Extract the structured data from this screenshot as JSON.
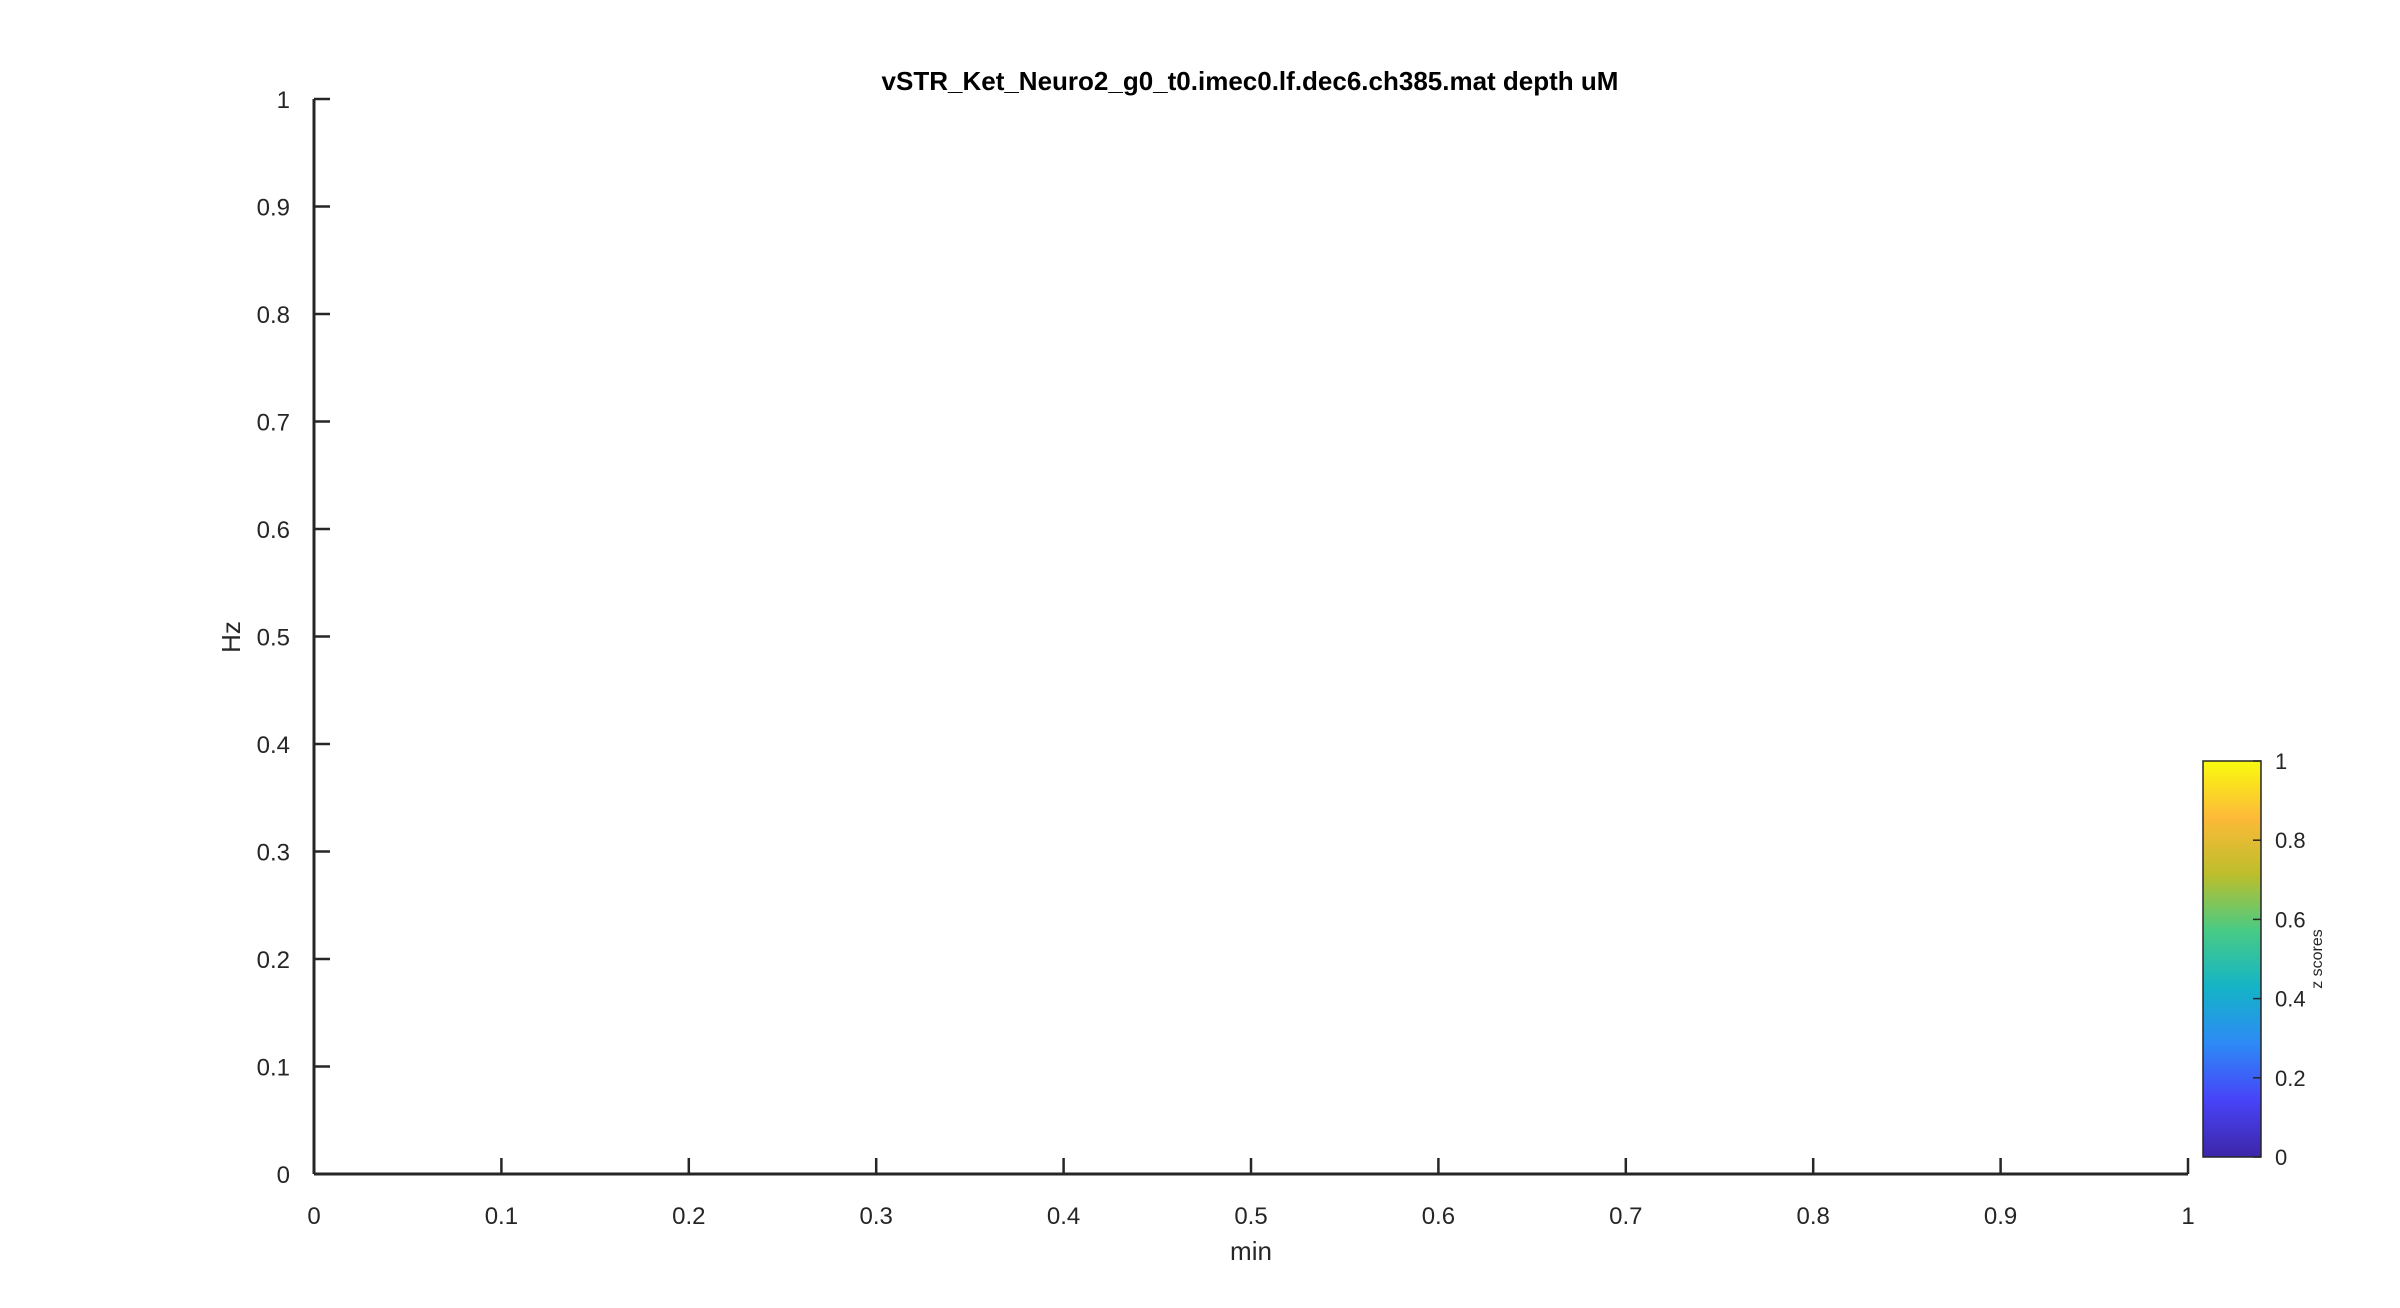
{
  "chart_data": {
    "type": "heatmap",
    "title": "vSTR_Ket_Neuro2_g0_t0.imec0.lf.dec6.ch385.mat depth  uM",
    "xlabel": "min",
    "ylabel": "Hz",
    "xlim": [
      0,
      1
    ],
    "ylim": [
      0,
      1
    ],
    "x_ticks": [
      "0",
      "0.1",
      "0.2",
      "0.3",
      "0.4",
      "0.5",
      "0.6",
      "0.7",
      "0.8",
      "0.9",
      "1"
    ],
    "y_ticks": [
      "0",
      "0.1",
      "0.2",
      "0.3",
      "0.4",
      "0.5",
      "0.6",
      "0.7",
      "0.8",
      "0.9",
      "1"
    ],
    "grid": false,
    "values": [],
    "colorbar": {
      "label": "z scores",
      "range": [
        0,
        1
      ],
      "ticks": [
        "0",
        "0.2",
        "0.4",
        "0.6",
        "0.8",
        "1"
      ],
      "colormap": "parula",
      "colors": [
        "#3e26a8",
        "#4743f8",
        "#2d8af6",
        "#14b4c7",
        "#48cb85",
        "#bdbe2b",
        "#fdba38",
        "#f9fb0e"
      ]
    }
  }
}
